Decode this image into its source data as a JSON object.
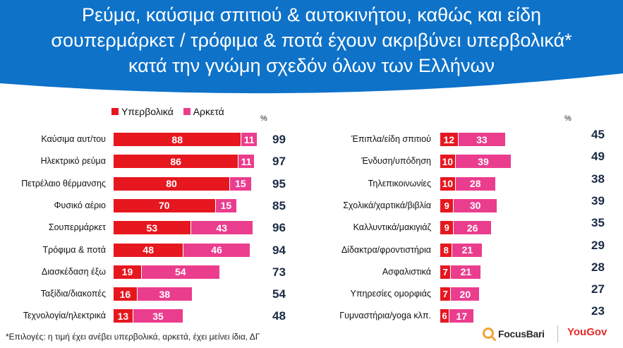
{
  "title_lines": [
    "Ρεύμα, καύσιμα σπιτιού & αυτοκινήτου, καθώς και είδη",
    "σουπερμάρκετ / τρόφιμα & ποτά έχουν ακριβύνει υπερβολικά*",
    "κατά την γνώμη σχεδόν όλων των Ελλήνων"
  ],
  "colors": {
    "header": "#0e72c9",
    "s1": "#e6171f",
    "s2": "#eb3d8e",
    "total": "#1a2a44"
  },
  "footnote": "*Επιλογές: η τιμή έχει ανέβει υπερβολικά, αρκετά, έχει μείνει ίδια, ΔΓ",
  "logos": {
    "focusbari": "FocusBari",
    "yougov": "YouGov"
  },
  "chart_data": [
    {
      "type": "bar",
      "orientation": "horizontal",
      "stacked": true,
      "title": "",
      "xlabel": "",
      "ylabel": "%",
      "xlim": [
        0,
        100
      ],
      "pct_label": "%",
      "legend": [
        "Υπερβολικά",
        "Αρκετά"
      ],
      "categories": [
        "Καύσιμα αυτ/του",
        "Ηλεκτρικό ρεύμα",
        "Πετρέλαιο θέρμανσης",
        "Φυσικό αέριο",
        "Σουπερμάρκετ",
        "Τρόφιμα & ποτά",
        "Διασκέδαση έξω",
        "Ταξίδια/διακοπές",
        "Τεχνολογία/ηλεκτρικά"
      ],
      "series": [
        {
          "name": "Υπερβολικά",
          "values": [
            88,
            86,
            80,
            70,
            53,
            48,
            19,
            16,
            13
          ]
        },
        {
          "name": "Αρκετά",
          "values": [
            11,
            11,
            15,
            15,
            43,
            46,
            54,
            38,
            35
          ]
        }
      ],
      "totals": [
        99,
        97,
        95,
        85,
        96,
        94,
        73,
        54,
        48
      ]
    },
    {
      "type": "bar",
      "orientation": "horizontal",
      "stacked": true,
      "title": "",
      "xlabel": "",
      "ylabel": "%",
      "xlim": [
        0,
        100
      ],
      "pct_label": "%",
      "legend": [
        "Υπερβολικά",
        "Αρκετά"
      ],
      "categories": [
        "Έπιπλα/είδη σπιτιού",
        "Ένδυση/υπόδηση",
        "Τηλεπικοινωνίες",
        "Σχολικά/χαρτικά/βιβλία",
        "Καλλυντικά/μακιγιάζ",
        "Δίδακτρα/φροντιστήρια",
        "Ασφαλιστικά",
        "Υπηρεσίες ομορφιάς",
        "Γυμναστήρια/yoga κλπ."
      ],
      "series": [
        {
          "name": "Υπερβολικά",
          "values": [
            12,
            10,
            10,
            9,
            9,
            8,
            7,
            7,
            6
          ]
        },
        {
          "name": "Αρκετά",
          "values": [
            33,
            39,
            28,
            30,
            26,
            21,
            21,
            20,
            17
          ]
        }
      ],
      "totals": [
        45,
        49,
        38,
        39,
        35,
        29,
        28,
        27,
        23
      ]
    }
  ]
}
